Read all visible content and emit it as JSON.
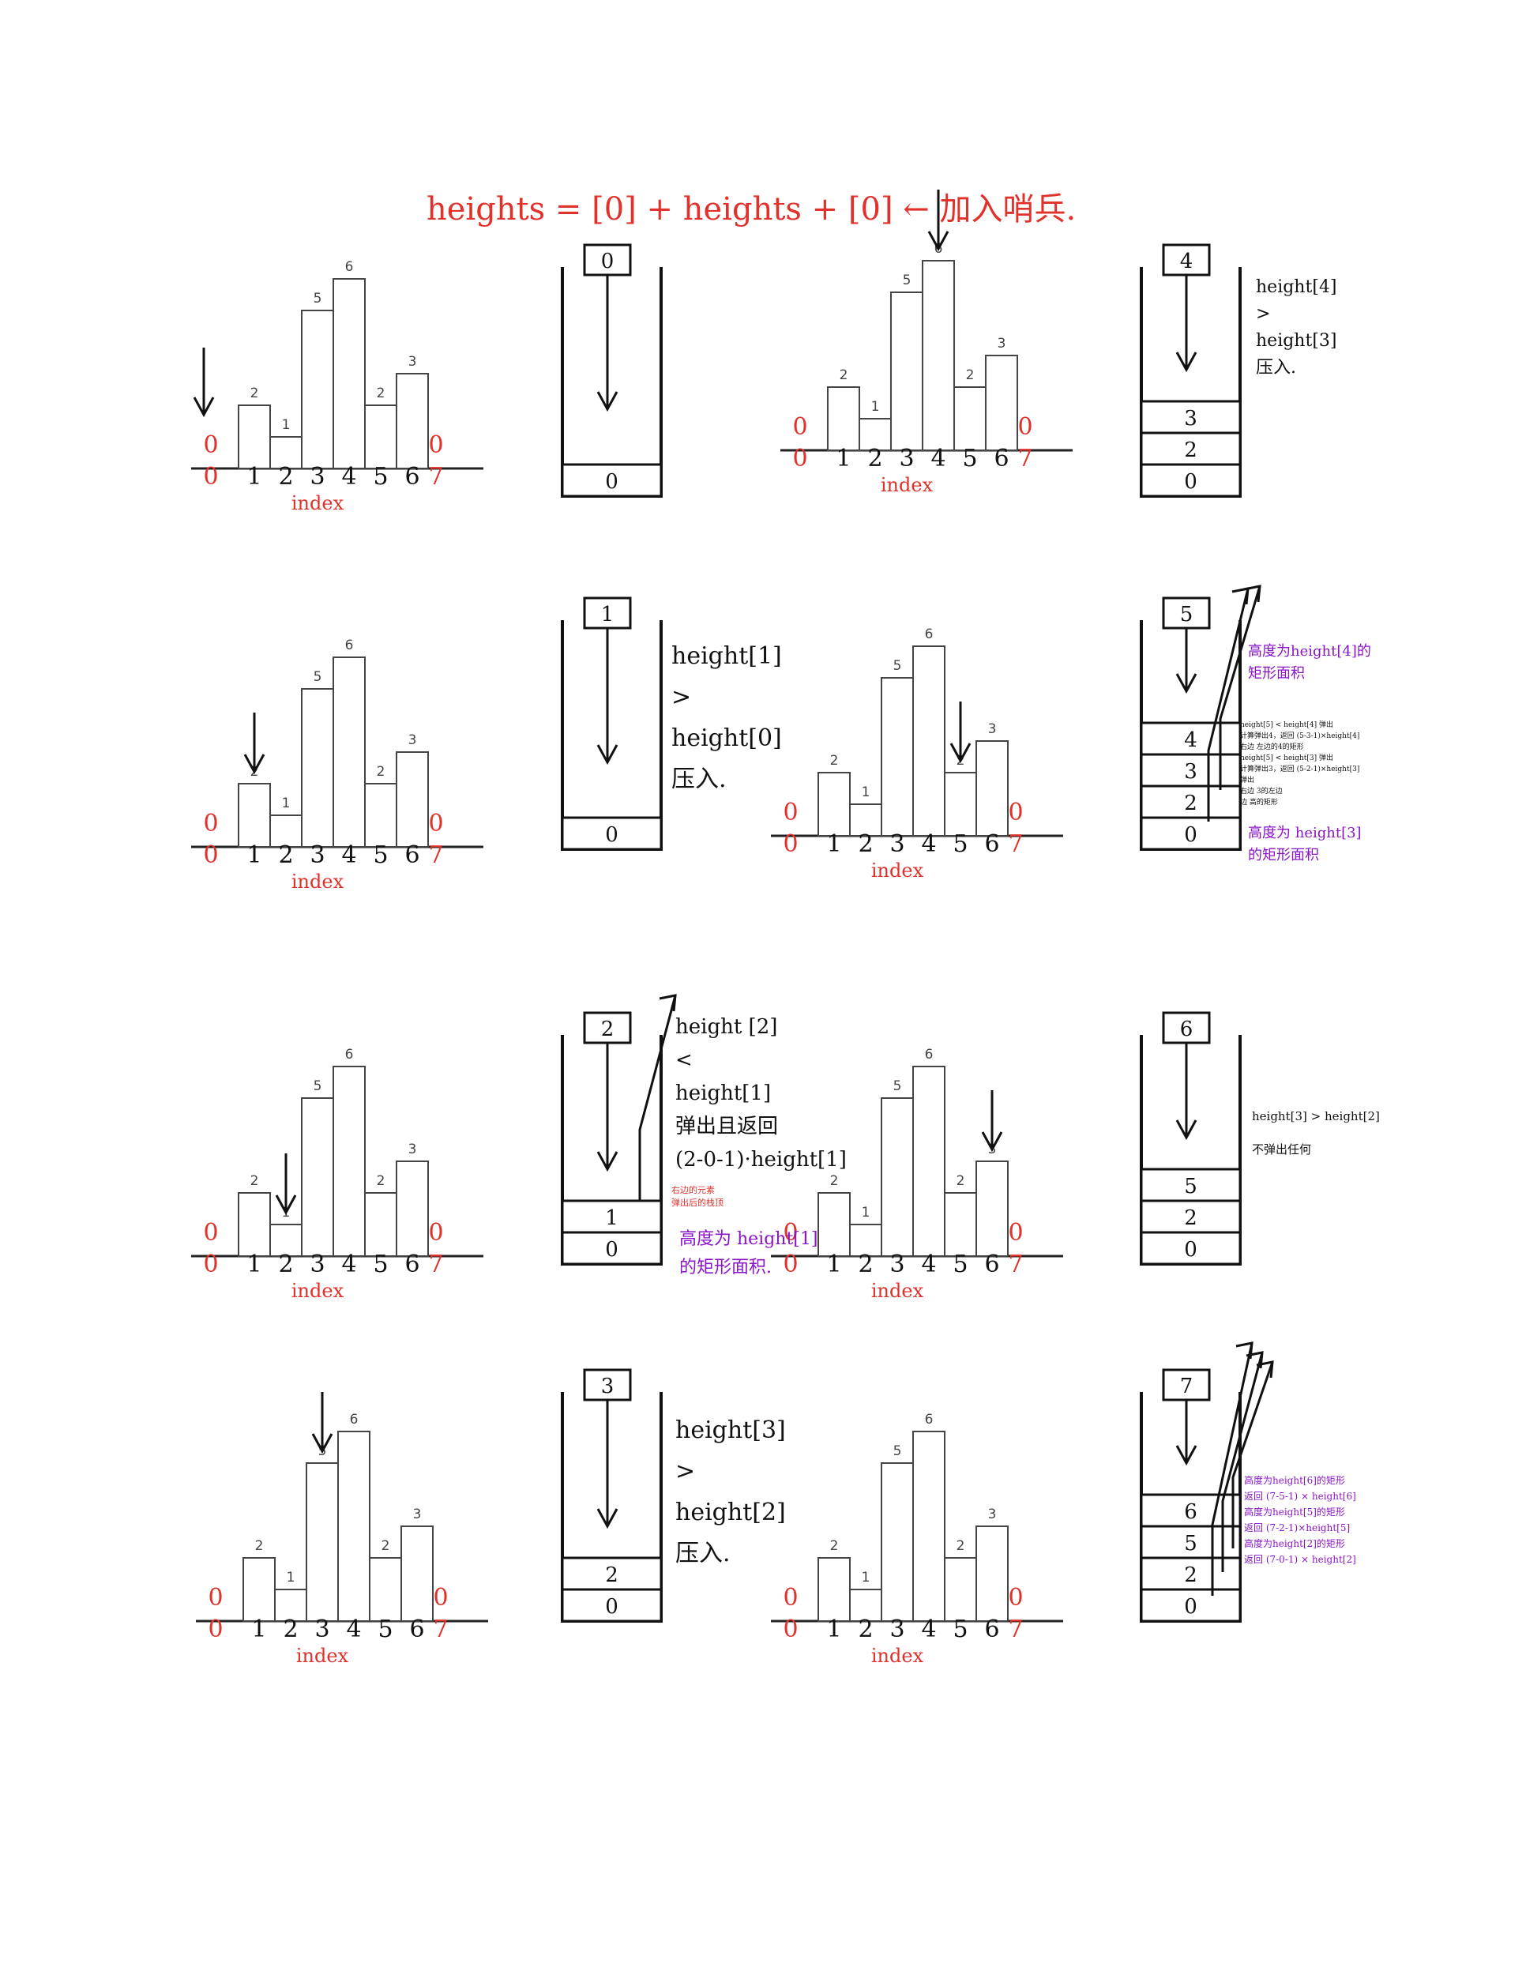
{
  "title": "heights = [0] + heights + [0] ← 加入哨兵.",
  "colors": {
    "annotation": "#e0312b",
    "handwriting": "#111111",
    "highlight": "#8a14c9",
    "bar": "#444444"
  },
  "chart_data": {
    "type": "bar",
    "categories": [
      "0",
      "1",
      "2",
      "3",
      "4",
      "5",
      "6",
      "7"
    ],
    "values": [
      0,
      2,
      1,
      5,
      6,
      2,
      3,
      0
    ],
    "bar_labels": [
      "",
      "2",
      "1",
      "5",
      "6",
      "2",
      "3",
      ""
    ],
    "sentinel_label": "0",
    "xlabel": "index",
    "ylim": [
      0,
      6
    ]
  },
  "panels": [
    {
      "stack": [
        "0"
      ],
      "top": "0",
      "note": []
    },
    {
      "stack": [
        "3",
        "2",
        "0"
      ],
      "top": "4",
      "note": [
        "height[4]",
        ">",
        "height[3]",
        "压入."
      ]
    },
    {
      "stack": [
        "0"
      ],
      "top": "1",
      "note": [
        "height[1]",
        ">",
        "height[0]",
        "压入."
      ]
    },
    {
      "stack": [
        "4",
        "3",
        "2",
        "0"
      ],
      "top": "5",
      "note_top": [
        "高度为height[4]的",
        "矩形面积"
      ],
      "small_notes": [
        "height[5] < height[4] 弹出",
        "计算弹出4，返回 (5-3-1)×height[4]",
        "右边  左边的4的矩形",
        "height[5] < height[3] 弹出",
        "计算弹出3，返回 (5-2-1)×height[3]",
        "弹出",
        "右边  3的左边",
        "边   高的矩形"
      ],
      "note_bottom": [
        "高度为 height[3]",
        "的矩形面积"
      ]
    },
    {
      "stack": [
        "1",
        "0"
      ],
      "top": "2",
      "note": [
        "height [2]",
        "<",
        "height[1]",
        "弹出且返回",
        "(2-0-1)·height[1]"
      ],
      "small_notes": [
        "右边的元素",
        "弹出后的栈顶"
      ],
      "highlight": [
        "高度为 height[1]",
        "的矩形面积."
      ]
    },
    {
      "stack": [
        "5",
        "2",
        "0"
      ],
      "top": "6",
      "note": [
        "height[3] > height[2]",
        "不弹出任何"
      ]
    },
    {
      "stack": [
        "2",
        "0"
      ],
      "top": "3",
      "note": [
        "height[3]",
        ">",
        "height[2]",
        "压入."
      ]
    },
    {
      "stack": [
        "6",
        "5",
        "2",
        "0"
      ],
      "top": "7",
      "highlight": [
        "高度为height[6]的矩形",
        "返回 (7-5-1) × height[6]",
        "高度为height[5]的矩形",
        "返回 (7-2-1)×height[5]",
        "高度为height[2]的矩形",
        "返回 (7-0-1) × height[2]"
      ]
    }
  ]
}
